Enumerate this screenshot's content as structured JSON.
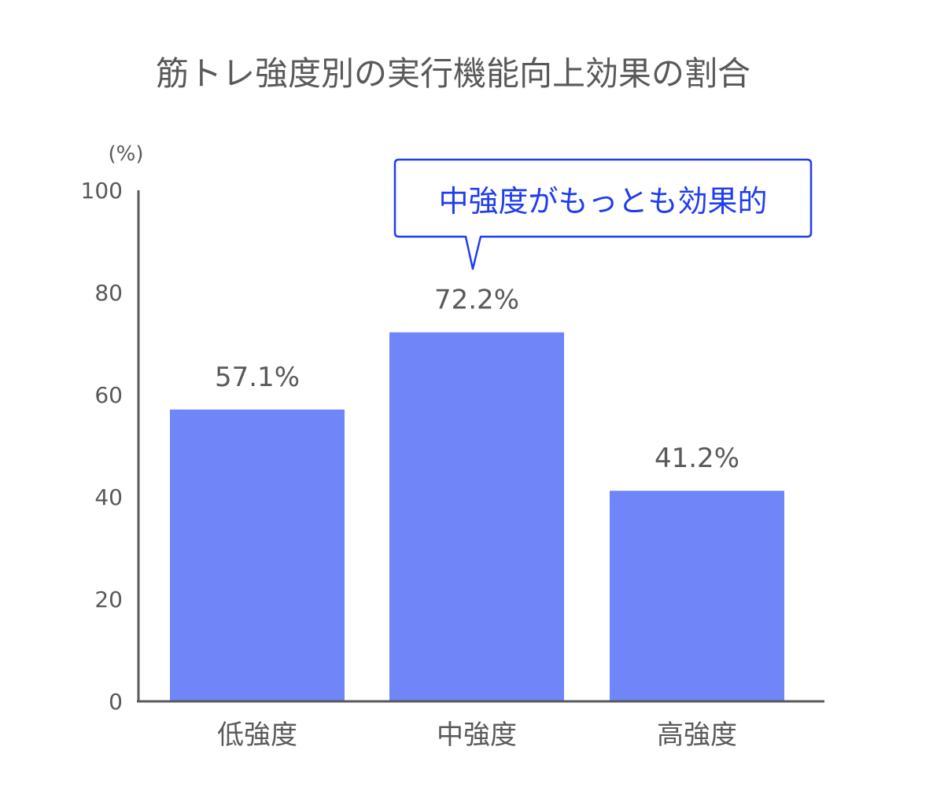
{
  "chart_data": {
    "type": "bar",
    "title": "筋トレ強度別の実行機能向上効果の割合",
    "ylabel": "(%)",
    "xlabel": "",
    "ylim": [
      0,
      100
    ],
    "yticks": [
      0,
      20,
      40,
      60,
      80,
      100
    ],
    "categories": [
      "低強度",
      "中強度",
      "高強度"
    ],
    "values": [
      57.1,
      72.2,
      41.2
    ],
    "value_labels": [
      "57.1%",
      "72.2%",
      "41.2%"
    ],
    "grid": false,
    "legend": "none",
    "bar_color": "#7085f8",
    "axis_color": "#595959",
    "text_color": "#595959",
    "annotation": {
      "text": "中強度がもっとも効果的",
      "target_category": "中強度",
      "color": "#1f3cf0"
    }
  }
}
